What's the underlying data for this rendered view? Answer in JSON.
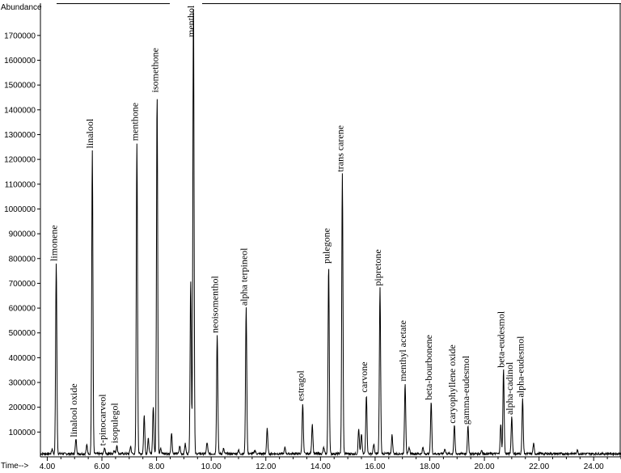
{
  "chart_data": {
    "type": "line",
    "ylabel": "Abundance",
    "xlabel": "Time-->",
    "xlim": [
      3.75,
      25.0
    ],
    "ylim": [
      0,
      1830000
    ],
    "x_ticks": [
      "4.00",
      "6.00",
      "8.00",
      "10.00",
      "12.00",
      "14.00",
      "16.00",
      "18.00",
      "20.00",
      "22.00",
      "24.00"
    ],
    "y_ticks": [
      "100000",
      "200000",
      "300000",
      "400000",
      "500000",
      "600000",
      "700000",
      "800000",
      "900000",
      "1000000",
      "1100000",
      "1200000",
      "1300000",
      "1400000",
      "1500000",
      "1600000",
      "1700000"
    ],
    "peaks": [
      {
        "name": "limonene",
        "time": 4.33,
        "abundance": 770000
      },
      {
        "name": "linalool oxide",
        "time": 5.05,
        "abundance": 60000
      },
      {
        "name": "linalool",
        "time": 5.65,
        "abundance": 1225000
      },
      {
        "name": "t-pinocarveol",
        "time": 6.1,
        "abundance": 25000
      },
      {
        "name": "isopulegol",
        "time": 6.55,
        "abundance": 35000
      },
      {
        "name": "menthone",
        "time": 7.28,
        "abundance": 1255000
      },
      {
        "name": "isomethone",
        "time": 8.02,
        "abundance": 1450000
      },
      {
        "name": "menthol",
        "time": 9.35,
        "abundance": 1830000
      },
      {
        "name": "neoisomenthol",
        "time": 10.22,
        "abundance": 480000
      },
      {
        "name": "alpha terpineol",
        "time": 11.28,
        "abundance": 590000
      },
      {
        "name": "estragol",
        "time": 13.35,
        "abundance": 205000
      },
      {
        "name": "pulegone",
        "time": 14.3,
        "abundance": 760000
      },
      {
        "name": "trans carene",
        "time": 14.8,
        "abundance": 1130000
      },
      {
        "name": "carvone",
        "time": 15.68,
        "abundance": 240000
      },
      {
        "name": "pipretone",
        "time": 16.18,
        "abundance": 670000
      },
      {
        "name": "menthyl acetate",
        "time": 17.1,
        "abundance": 285000
      },
      {
        "name": "beta-bourbonene",
        "time": 18.05,
        "abundance": 210000
      },
      {
        "name": "caryophyllene oxide",
        "time": 18.9,
        "abundance": 115000
      },
      {
        "name": "gamma-eudesmol",
        "time": 19.4,
        "abundance": 110000
      },
      {
        "name": "beta-eudesmol",
        "time": 20.7,
        "abundance": 340000
      },
      {
        "name": "alpha-cadinol",
        "time": 21.0,
        "abundance": 150000
      },
      {
        "name": "alpha-eudesmol",
        "time": 21.4,
        "abundance": 220000
      }
    ],
    "minor_peaks": [
      {
        "time": 4.18,
        "abundance": 20000
      },
      {
        "time": 5.45,
        "abundance": 35000
      },
      {
        "time": 6.45,
        "abundance": 15000
      },
      {
        "time": 7.05,
        "abundance": 30000
      },
      {
        "time": 7.55,
        "abundance": 155000
      },
      {
        "time": 7.7,
        "abundance": 60000
      },
      {
        "time": 7.88,
        "abundance": 190000
      },
      {
        "time": 8.15,
        "abundance": 25000
      },
      {
        "time": 8.55,
        "abundance": 85000
      },
      {
        "time": 8.85,
        "abundance": 30000
      },
      {
        "time": 9.05,
        "abundance": 40000
      },
      {
        "time": 9.25,
        "abundance": 700000
      },
      {
        "time": 9.85,
        "abundance": 45000
      },
      {
        "time": 10.45,
        "abundance": 20000
      },
      {
        "time": 11.0,
        "abundance": 15000
      },
      {
        "time": 11.6,
        "abundance": 15000
      },
      {
        "time": 12.05,
        "abundance": 100000
      },
      {
        "time": 12.7,
        "abundance": 25000
      },
      {
        "time": 13.7,
        "abundance": 120000
      },
      {
        "time": 14.12,
        "abundance": 25000
      },
      {
        "time": 15.4,
        "abundance": 100000
      },
      {
        "time": 15.5,
        "abundance": 80000
      },
      {
        "time": 15.95,
        "abundance": 40000
      },
      {
        "time": 16.62,
        "abundance": 75000
      },
      {
        "time": 17.25,
        "abundance": 25000
      },
      {
        "time": 17.75,
        "abundance": 25000
      },
      {
        "time": 18.55,
        "abundance": 20000
      },
      {
        "time": 19.9,
        "abundance": 15000
      },
      {
        "time": 20.6,
        "abundance": 120000
      },
      {
        "time": 21.8,
        "abundance": 40000
      },
      {
        "time": 23.4,
        "abundance": 15000
      }
    ]
  }
}
